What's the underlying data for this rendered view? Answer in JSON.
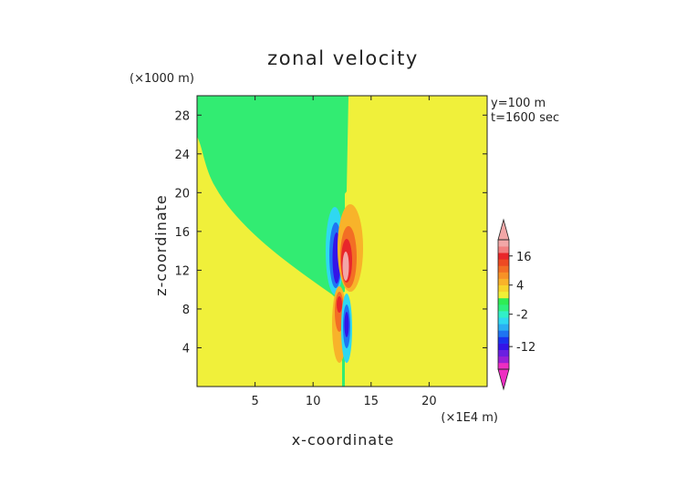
{
  "chart_data": {
    "type": "heatmap",
    "title": "zonal velocity",
    "xlabel": "x-coordinate",
    "ylabel": "z-coordinate",
    "x_unit_label": "(×1E4 m)",
    "y_unit_label": "(×1000 m)",
    "annotations": [
      "y=100 m",
      "t=1600 sec"
    ],
    "xlim": [
      0,
      25
    ],
    "ylim": [
      0,
      30
    ],
    "x_ticks": [
      5,
      10,
      15,
      20
    ],
    "y_ticks": [
      4,
      8,
      12,
      16,
      20,
      24,
      28
    ],
    "colorbar": {
      "labeled_ticks": [
        "16",
        "4",
        "-2",
        "-12"
      ],
      "extend": "both",
      "colors": [
        "#ee2ec2",
        "#9b1fd6",
        "#6a1fe0",
        "#3414e8",
        "#1a32ef",
        "#1f74f2",
        "#2aaef3",
        "#2fd8f1",
        "#31f0c8",
        "#2ff07e",
        "#2fec55",
        "#f0f036",
        "#f7d52c",
        "#f8b32a",
        "#f79226",
        "#f36e24",
        "#ee4a22",
        "#e8262a",
        "#f27f7f",
        "#f2a7a7"
      ]
    },
    "background_colors": {
      "negative_small": "#32ec72",
      "positive_small": "#f0f03a"
    },
    "regions": [
      {
        "sign": "negative",
        "level": "-2 to 0",
        "shape": "green outer region framing the yellow basin"
      },
      {
        "sign": "positive",
        "level": "0 to 4",
        "shape": "yellow region right of x=12.5"
      },
      {
        "sign": "negative",
        "level": "-12 to -2",
        "center": [
          11.9,
          14
        ],
        "extent": "z 10-17"
      },
      {
        "sign": "positive",
        "level": "4 to 16+",
        "center": [
          12.9,
          13
        ],
        "extent": "z 10-18"
      },
      {
        "sign": "positive",
        "level": "4 to 16",
        "center": [
          12.1,
          7
        ],
        "extent": "z 3-10"
      },
      {
        "sign": "negative",
        "level": "-12 to -2",
        "center": [
          12.9,
          6
        ],
        "extent": "z 3-10"
      }
    ]
  }
}
